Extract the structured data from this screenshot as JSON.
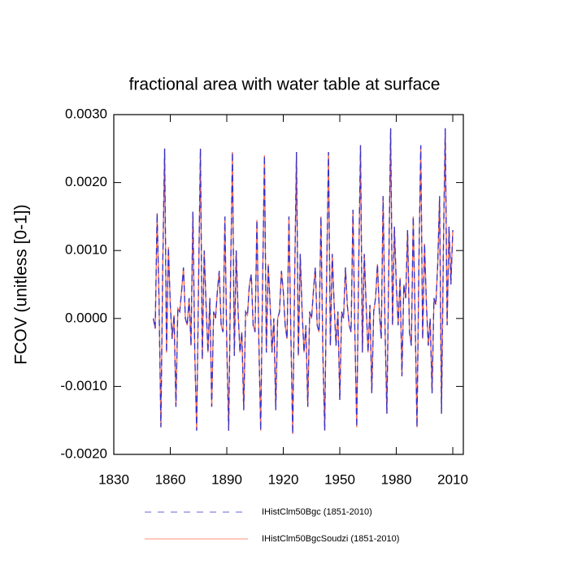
{
  "chart_data": {
    "type": "line",
    "title": "fractional area with water table at surface",
    "y_label": "FCOV  (unitless [0-1])",
    "x": [
      1851,
      1852,
      1853,
      1854,
      1855,
      1856,
      1857,
      1858,
      1859,
      1860,
      1861,
      1862,
      1863,
      1864,
      1865,
      1866,
      1867,
      1868,
      1869,
      1870,
      1871,
      1872,
      1873,
      1874,
      1875,
      1876,
      1877,
      1878,
      1879,
      1880,
      1881,
      1882,
      1883,
      1884,
      1885,
      1886,
      1887,
      1888,
      1889,
      1890,
      1891,
      1892,
      1893,
      1894,
      1895,
      1896,
      1897,
      1898,
      1899,
      1900,
      1901,
      1902,
      1903,
      1904,
      1905,
      1906,
      1907,
      1908,
      1909,
      1910,
      1911,
      1912,
      1913,
      1914,
      1915,
      1916,
      1917,
      1918,
      1919,
      1920,
      1921,
      1922,
      1923,
      1924,
      1925,
      1926,
      1927,
      1928,
      1929,
      1930,
      1931,
      1932,
      1933,
      1934,
      1935,
      1936,
      1937,
      1938,
      1939,
      1940,
      1941,
      1942,
      1943,
      1944,
      1945,
      1946,
      1947,
      1948,
      1949,
      1950,
      1951,
      1952,
      1953,
      1954,
      1955,
      1956,
      1957,
      1958,
      1959,
      1960,
      1961,
      1962,
      1963,
      1964,
      1965,
      1966,
      1967,
      1968,
      1969,
      1970,
      1971,
      1972,
      1973,
      1974,
      1975,
      1976,
      1977,
      1978,
      1979,
      1980,
      1981,
      1982,
      1983,
      1984,
      1985,
      1986,
      1987,
      1988,
      1989,
      1990,
      1991,
      1992,
      1993,
      1994,
      1995,
      1996,
      1997,
      1998,
      1999,
      2000,
      2001,
      2002,
      2003,
      2004,
      2005,
      2006,
      2007,
      2008,
      2009,
      2010
    ],
    "series": [
      {
        "name": "IHistClm50BgcSoudzi (1851-2010)",
        "color": "#ff6a4d",
        "dash": false,
        "values": [
          0,
          -0.00015,
          0.00155,
          0.0003,
          -0.0016,
          0.0008,
          0.0025,
          -0.0005,
          0.00105,
          0.0002,
          -0.0003,
          5e-05,
          -0.0013,
          0.00015,
          0.0001,
          0.0004,
          0.00075,
          0,
          -0.0001,
          0.0003,
          -0.0004,
          0.00157,
          -0.0005,
          -0.00165,
          0.0005,
          0.0025,
          -0.0006,
          0.001,
          0.0002,
          -0.0005,
          0.0003,
          -0.0013,
          0.0001,
          0,
          0.0004,
          0.0007,
          -0.0001,
          -0.0002,
          0.0015,
          -0.0004,
          -0.00165,
          0.0006,
          0.00245,
          -0.00055,
          0.001,
          0.0001,
          -0.0005,
          -0.0002,
          -0.00135,
          0.0001,
          5e-05,
          0.0005,
          0.00065,
          -0.0001,
          -0.0002,
          0.00145,
          -0.0003,
          -0.00165,
          0.0005,
          0.0024,
          -0.0005,
          0.0008,
          0.0002,
          -0.0005,
          0,
          -0.00135,
          0,
          0.0001,
          0.0007,
          0.0004,
          -0.0001,
          -0.0003,
          0.0015,
          -0.0002,
          -0.0017,
          0.0005,
          0.00245,
          -0.00055,
          0.00095,
          0.0001,
          -0.0005,
          -0.0001,
          -0.0013,
          0.0001,
          0,
          0.0004,
          0.00075,
          -0.0001,
          -0.0002,
          0.0015,
          -0.0005,
          -0.00165,
          0.0006,
          0.00245,
          -0.0004,
          0.00095,
          0.0002,
          -0.0004,
          0.0001,
          -0.0012,
          0.0001,
          0,
          0.00075,
          0.0002,
          -0.0001,
          -0.0002,
          0.0016,
          -0.0002,
          -0.0016,
          0.0007,
          0.00255,
          -0.0005,
          0.00095,
          0.0002,
          -0.0005,
          0.0002,
          -0.0011,
          0.0001,
          0.0003,
          0.0008,
          0.0001,
          -0.0003,
          0.0018,
          -0.0001,
          -0.0014,
          0.0007,
          0.0028,
          -0.0001,
          0.00135,
          0.0005,
          -0.0001,
          0.0006,
          -0.00085,
          0.0005,
          0.0003,
          0.0013,
          -0.0002,
          -0.0004,
          0.0015,
          0,
          -0.0016,
          0.0008,
          0.00255,
          -0.0003,
          0.0011,
          0.0002,
          -0.0004,
          0,
          -0.0011,
          0.0003,
          0.0002,
          0.0008,
          0.0018,
          -0.0014,
          0.001,
          0.0028,
          -0.0001,
          0.00135,
          0.0005,
          0.0013
        ]
      },
      {
        "name": "IHistClm50Bgc (1851-2010)",
        "color": "#3333cc",
        "dash": true,
        "values": [
          0,
          -0.00015,
          0.00155,
          0.0003,
          -0.0016,
          0.0008,
          0.0025,
          -0.0005,
          0.00105,
          0.0002,
          -0.0003,
          5e-05,
          -0.0013,
          0.00015,
          0.0001,
          0.0004,
          0.00075,
          0,
          -0.0001,
          0.0003,
          -0.0004,
          0.00157,
          -0.0005,
          -0.00165,
          0.0005,
          0.0025,
          -0.0006,
          0.001,
          0.0002,
          -0.0005,
          0.0003,
          -0.0013,
          0.0001,
          0,
          0.0004,
          0.0007,
          -0.0001,
          -0.0002,
          0.0015,
          -0.0004,
          -0.00165,
          0.0006,
          0.00245,
          -0.00055,
          0.001,
          0.0001,
          -0.0005,
          -0.0002,
          -0.00135,
          0.0001,
          5e-05,
          0.0005,
          0.00065,
          -0.0001,
          -0.0002,
          0.00145,
          -0.0003,
          -0.00165,
          0.0005,
          0.0024,
          -0.0005,
          0.0008,
          0.0002,
          -0.0005,
          0,
          -0.00135,
          0,
          0.0001,
          0.0007,
          0.0004,
          -0.0001,
          -0.0003,
          0.0015,
          -0.0002,
          -0.0017,
          0.0005,
          0.00245,
          -0.00055,
          0.00095,
          0.0001,
          -0.0005,
          -0.0001,
          -0.0013,
          0.0001,
          0,
          0.0004,
          0.00075,
          -0.0001,
          -0.0002,
          0.0015,
          -0.0005,
          -0.00165,
          0.0006,
          0.00245,
          -0.0004,
          0.00095,
          0.0002,
          -0.0004,
          0.0001,
          -0.0012,
          0.0001,
          0,
          0.00075,
          0.0002,
          -0.0001,
          -0.0002,
          0.0016,
          -0.0002,
          -0.0016,
          0.0007,
          0.00255,
          -0.0005,
          0.00095,
          0.0002,
          -0.0005,
          0.0002,
          -0.0011,
          0.0001,
          0.0003,
          0.0008,
          0.0001,
          -0.0003,
          0.0018,
          -0.0001,
          -0.0014,
          0.0007,
          0.0028,
          -0.0001,
          0.00135,
          0.0005,
          -0.0001,
          0.0006,
          -0.00085,
          0.0005,
          0.0003,
          0.0013,
          -0.0002,
          -0.0004,
          0.0015,
          0,
          -0.0016,
          0.0008,
          0.00255,
          -0.0003,
          0.0011,
          0.0002,
          -0.0004,
          0,
          -0.0011,
          0.0003,
          0.0002,
          0.0008,
          0.0018,
          -0.0014,
          0.001,
          0.0028,
          -0.0001,
          0.00135,
          0.0005,
          0.0013
        ]
      }
    ],
    "legend_order": [
      1,
      0
    ],
    "xlim": [
      1830,
      2015.6
    ],
    "xticks": [
      1830,
      1860,
      1890,
      1920,
      1950,
      1980,
      2010
    ],
    "ylim": [
      -0.002,
      0.003
    ],
    "yticks": [
      {
        "value": -0.002,
        "label": "-0.0020"
      },
      {
        "value": -0.001,
        "label": "-0.0010"
      },
      {
        "value": 0,
        "label": "0.0000"
      },
      {
        "value": 0.001,
        "label": "0.0010"
      },
      {
        "value": 0.002,
        "label": "0.0020"
      },
      {
        "value": 0.003,
        "label": "0.0030"
      }
    ]
  }
}
